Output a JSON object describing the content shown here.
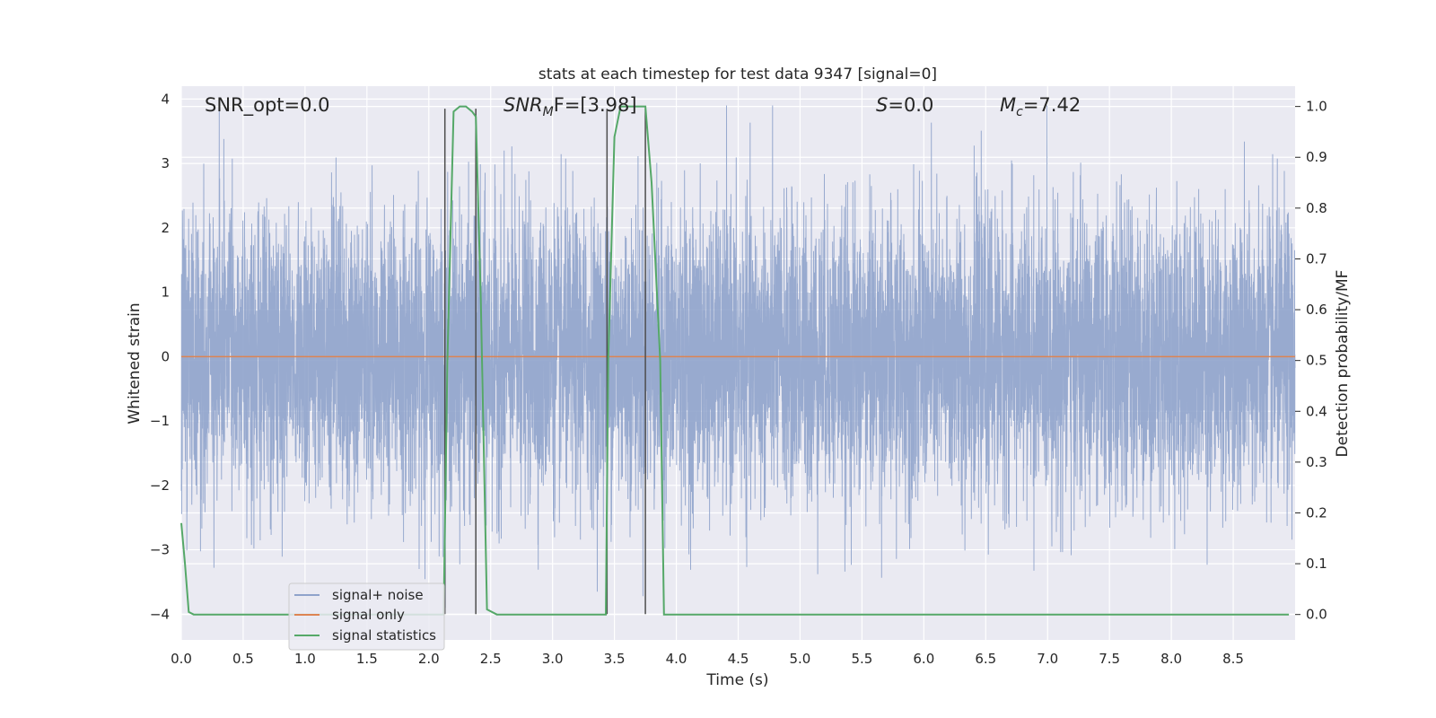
{
  "chart_data": {
    "type": "line",
    "title": "stats at each timestep for test data 9347 [signal=0]",
    "xlabel": "Time (s)",
    "ylabel": "Whitened strain",
    "y2label": "Detection probability/MF",
    "xlim": [
      0.0,
      9.0
    ],
    "ylim": [
      -4.4,
      4.2
    ],
    "y2lim": [
      -0.05,
      1.04
    ],
    "xticks": [
      0.0,
      0.5,
      1.0,
      1.5,
      2.0,
      2.5,
      3.0,
      3.5,
      4.0,
      4.5,
      5.0,
      5.5,
      6.0,
      6.5,
      7.0,
      7.5,
      8.0,
      8.5
    ],
    "xtick_labels": [
      "0.0",
      "0.5",
      "1.0",
      "1.5",
      "2.0",
      "2.5",
      "3.0",
      "3.5",
      "4.0",
      "4.5",
      "5.0",
      "5.5",
      "6.0",
      "6.5",
      "7.0",
      "7.5",
      "8.0",
      "8.5"
    ],
    "yticks": [
      4,
      3,
      2,
      1,
      0,
      -1,
      -2,
      -3,
      -4
    ],
    "ytick_labels": [
      "4",
      "3",
      "2",
      "1",
      "0",
      "−1",
      "−2",
      "−3",
      "−4"
    ],
    "y2ticks": [
      1.0,
      0.9,
      0.8,
      0.7,
      0.6,
      0.5,
      0.4,
      0.3,
      0.2,
      0.1,
      0.0
    ],
    "y2tick_labels": [
      "1.0",
      "0.9",
      "0.8",
      "0.7",
      "0.6",
      "0.5",
      "0.4",
      "0.3",
      "0.2",
      "0.1",
      "0.0"
    ],
    "annotations": {
      "snr_opt": "SNR_opt=0.0",
      "snr_mf_base": "SNR",
      "snr_mf_sub": "M",
      "snr_mf_rest": "F=[3.98]",
      "s_italic": "S",
      "s_rest": "=0.0",
      "mc_base": "M",
      "mc_sub": "c",
      "mc_rest": "=7.42"
    },
    "series": [
      {
        "name": "signal+ noise",
        "color": "#8fa3cb",
        "axis": "left",
        "kind": "noise",
        "samples": 8192,
        "amplitude_core": 1.1,
        "spike_max": 3.9
      },
      {
        "name": "signal only",
        "color": "#dd8452",
        "axis": "left",
        "x": [
          0.0,
          9.0
        ],
        "y": [
          0.0,
          0.0
        ]
      },
      {
        "name": "signal statistics",
        "color": "#55a868",
        "axis": "right",
        "x": [
          0.0,
          0.03,
          0.06,
          0.1,
          0.5,
          1.0,
          1.5,
          2.0,
          2.12,
          2.15,
          2.2,
          2.25,
          2.3,
          2.35,
          2.38,
          2.42,
          2.47,
          2.55,
          3.0,
          3.43,
          3.45,
          3.5,
          3.55,
          3.6,
          3.65,
          3.7,
          3.75,
          3.8,
          3.87,
          3.9,
          4.5,
          5.0,
          6.0,
          7.0,
          8.0,
          8.95
        ],
        "y": [
          0.18,
          0.1,
          0.005,
          0.0,
          0.0,
          0.0,
          0.0,
          0.0,
          0.0,
          0.5,
          0.99,
          1.0,
          1.0,
          0.99,
          0.98,
          0.62,
          0.01,
          0.0,
          0.0,
          0.0,
          0.5,
          0.94,
          1.0,
          1.0,
          1.0,
          1.0,
          1.0,
          0.85,
          0.5,
          0.0,
          0.0,
          0.0,
          0.0,
          0.0,
          0.0,
          0.0
        ]
      }
    ],
    "vlines": [
      2.13,
      2.38,
      3.44,
      3.75
    ],
    "vline_y_range": [
      -4.0,
      3.85
    ],
    "vline_color": "#4d4d4d",
    "legend": {
      "location": "lower-left",
      "entries": [
        "signal+ noise",
        "signal only",
        "signal statistics"
      ]
    },
    "background": "#eaeaf2",
    "grid": true
  }
}
